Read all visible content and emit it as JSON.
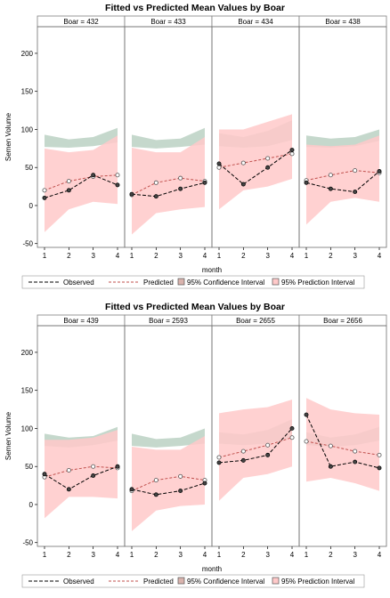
{
  "chart_data": [
    {
      "type": "line",
      "title": "Fitted vs Predicted Mean Values by Boar",
      "xlabel": "month",
      "ylabel": "Semen Volume",
      "x": [
        1,
        2,
        3,
        4
      ],
      "ylim": [
        -55,
        235
      ],
      "yticks": [
        -50,
        0,
        50,
        100,
        150,
        200
      ],
      "legend": {
        "position": "bottom",
        "entries": [
          "Observed",
          "Predicted",
          "95% Confidence Interval",
          "95% Prediction Interval"
        ]
      },
      "colors": {
        "observed": "#000000",
        "predicted": "#c0504d",
        "confidence": "#c5d8cc",
        "prediction": "#ffc9c9",
        "overlap": "#d9b3ad"
      },
      "panels": [
        {
          "label": "Boar = 432",
          "observed": [
            10,
            20,
            40,
            27
          ],
          "predicted": [
            20,
            32,
            38,
            40
          ],
          "ci_lower": [
            77,
            76,
            78,
            83
          ],
          "ci_upper": [
            93,
            87,
            90,
            102
          ],
          "pi_lower": [
            -35,
            -5,
            5,
            2
          ],
          "pi_upper": [
            75,
            70,
            73,
            92
          ]
        },
        {
          "label": "Boar = 433",
          "observed": [
            15,
            12,
            22,
            30
          ],
          "predicted": [
            14,
            30,
            36,
            32
          ],
          "ci_lower": [
            77,
            75,
            77,
            80
          ],
          "ci_upper": [
            93,
            86,
            88,
            102
          ],
          "pi_lower": [
            -38,
            -10,
            -5,
            -2
          ],
          "pi_upper": [
            76,
            70,
            70,
            90
          ]
        },
        {
          "label": "Boar = 434",
          "observed": [
            55,
            28,
            50,
            73
          ],
          "predicted": [
            50,
            56,
            62,
            68
          ],
          "ci_lower": [
            78,
            76,
            78,
            86
          ],
          "ci_upper": [
            95,
            90,
            98,
            112
          ],
          "pi_lower": [
            -5,
            20,
            25,
            35
          ],
          "pi_upper": [
            100,
            100,
            110,
            120
          ]
        },
        {
          "label": "Boar = 438",
          "observed": [
            30,
            22,
            18,
            45
          ],
          "predicted": [
            33,
            40,
            46,
            43
          ],
          "ci_lower": [
            77,
            76,
            78,
            85
          ],
          "ci_upper": [
            92,
            88,
            90,
            100
          ],
          "pi_lower": [
            -25,
            5,
            10,
            5
          ],
          "pi_upper": [
            80,
            78,
            80,
            92
          ]
        }
      ]
    },
    {
      "type": "line",
      "title": "Fitted vs Predicted Mean Values by Boar",
      "xlabel": "month",
      "ylabel": "Semen Volume",
      "x": [
        1,
        2,
        3,
        4
      ],
      "ylim": [
        -55,
        235
      ],
      "yticks": [
        -50,
        0,
        50,
        100,
        150,
        200
      ],
      "legend": {
        "position": "bottom",
        "entries": [
          "Observed",
          "Predicted",
          "95% Confidence Interval",
          "95% Prediction Interval"
        ]
      },
      "colors": {
        "observed": "#000000",
        "predicted": "#c0504d",
        "confidence": "#c5d8cc",
        "prediction": "#ffc9c9",
        "overlap": "#d9b3ad"
      },
      "panels": [
        {
          "label": "Boar = 439",
          "observed": [
            40,
            20,
            38,
            50
          ],
          "predicted": [
            36,
            45,
            50,
            48
          ],
          "ci_lower": [
            77,
            75,
            78,
            84
          ],
          "ci_upper": [
            93,
            88,
            90,
            102
          ],
          "pi_lower": [
            -18,
            10,
            10,
            8
          ],
          "pi_upper": [
            85,
            85,
            88,
            98
          ]
        },
        {
          "label": "Boar = 2593",
          "observed": [
            20,
            13,
            18,
            28
          ],
          "predicted": [
            18,
            32,
            37,
            32
          ],
          "ci_lower": [
            77,
            75,
            77,
            80
          ],
          "ci_upper": [
            93,
            86,
            88,
            100
          ],
          "pi_lower": [
            -35,
            -8,
            -2,
            0
          ],
          "pi_upper": [
            76,
            72,
            72,
            90
          ]
        },
        {
          "label": "Boar = 2655",
          "observed": [
            55,
            58,
            65,
            100
          ],
          "predicted": [
            62,
            70,
            78,
            88
          ],
          "ci_lower": [
            80,
            78,
            80,
            88
          ],
          "ci_upper": [
            95,
            92,
            98,
            112
          ],
          "pi_lower": [
            5,
            35,
            40,
            50
          ],
          "pi_upper": [
            120,
            125,
            128,
            138
          ]
        },
        {
          "label": "Boar = 2656",
          "observed": [
            118,
            50,
            56,
            48
          ],
          "predicted": [
            83,
            77,
            70,
            65
          ],
          "ci_lower": [
            78,
            76,
            78,
            84
          ],
          "ci_upper": [
            95,
            88,
            92,
            102
          ],
          "pi_lower": [
            30,
            35,
            28,
            18
          ],
          "pi_upper": [
            140,
            125,
            120,
            118
          ]
        }
      ]
    }
  ]
}
